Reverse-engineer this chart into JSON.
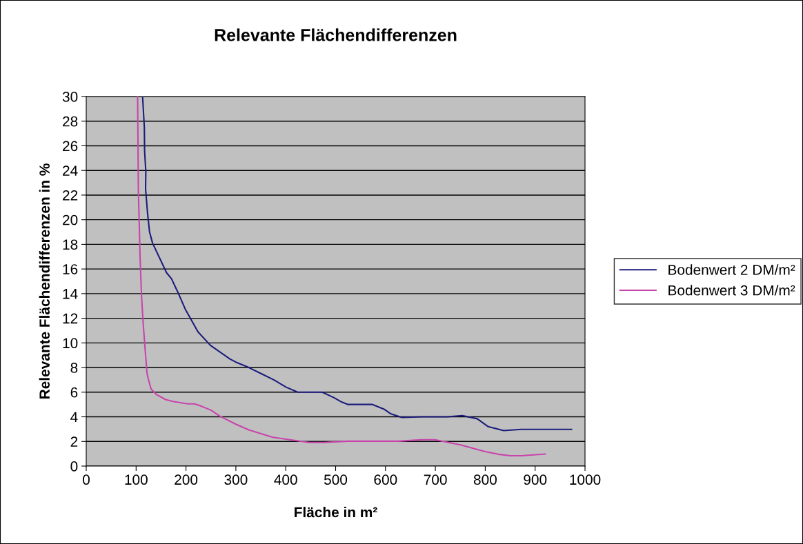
{
  "chart_data": {
    "type": "line",
    "title": "Relevante Flächendifferenzen",
    "xlabel": "Fläche in m²",
    "ylabel": "Relevante Flächendifferenzen in %",
    "xlim": [
      0,
      1000
    ],
    "xticks": [
      0,
      100,
      200,
      300,
      400,
      500,
      600,
      700,
      800,
      900,
      1000
    ],
    "ylim": [
      0,
      30
    ],
    "yticks": [
      0,
      2,
      4,
      6,
      8,
      10,
      12,
      14,
      16,
      18,
      20,
      22,
      24,
      26,
      28,
      30
    ],
    "grid": "y",
    "legend": "right",
    "marker": "none",
    "line_style": "solid",
    "series": [
      {
        "name": "Bodenwert 2 DM/m²",
        "color": "#1c1c7c",
        "x": [
          113,
          116.5,
          117,
          119.5,
          119,
          123,
          127,
          133,
          161,
          171,
          185,
          199,
          224,
          249,
          288,
          300,
          326,
          351,
          376,
          401,
          424,
          473,
          497,
          512,
          525,
          574,
          598,
          610,
          633,
          673,
          724,
          754,
          784,
          806,
          837,
          872,
          973
        ],
        "values": [
          30,
          27.5,
          25.6,
          23.9,
          22.5,
          20.5,
          19,
          18.1,
          15.7,
          15.2,
          14,
          12.7,
          10.9,
          9.8,
          8.7,
          8.44,
          8.0,
          7.5,
          7.0,
          6.4,
          6.0,
          6.0,
          5.55,
          5.2,
          5.0,
          5.0,
          4.6,
          4.26,
          3.95,
          4.0,
          4.0,
          4.1,
          3.84,
          3.2,
          2.88,
          2.98,
          2.98
        ]
      },
      {
        "name": "Bodenwert 3 DM/m²",
        "color": "#c844ac",
        "x": [
          103,
          104.5,
          108,
          111,
          114,
          118,
          122,
          125,
          130,
          140,
          159,
          174,
          203,
          216,
          225,
          250,
          268,
          300,
          326,
          374,
          401,
          447,
          477,
          525,
          626,
          673,
          699,
          749,
          800,
          826,
          850,
          873,
          920
        ],
        "values": [
          30,
          22.5,
          16.9,
          13.7,
          11.7,
          9.5,
          7.5,
          7.0,
          6.25,
          5.83,
          5.4,
          5.25,
          5.05,
          5.05,
          4.95,
          4.54,
          4.05,
          3.4,
          2.94,
          2.34,
          2.18,
          1.92,
          1.92,
          2.02,
          2.02,
          2.14,
          2.14,
          1.74,
          1.18,
          0.96,
          0.84,
          0.84,
          0.98
        ]
      }
    ]
  }
}
